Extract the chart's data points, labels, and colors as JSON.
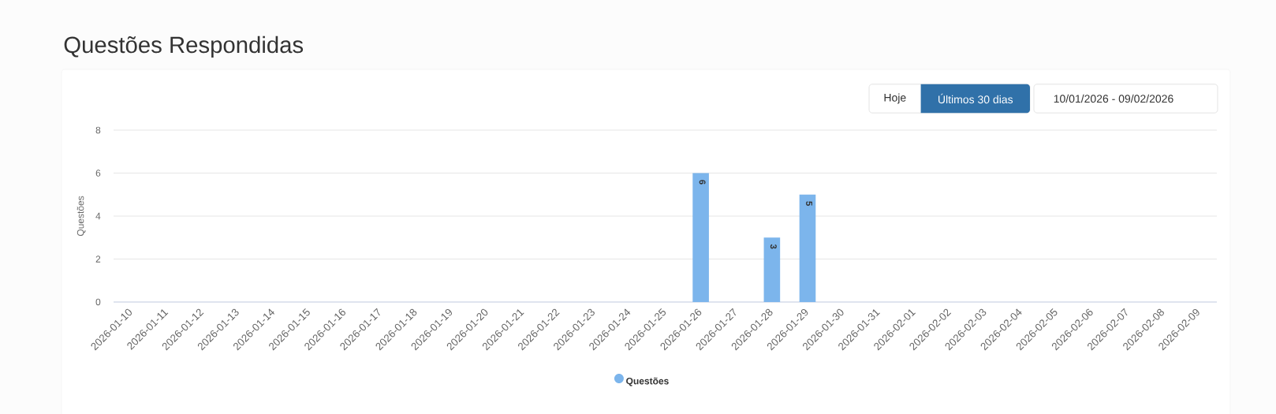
{
  "chart_data": {
    "type": "bar",
    "title": "Questões Respondidas",
    "ylabel": "Questões",
    "categories": [
      "2026-01-10",
      "2026-01-11",
      "2026-01-12",
      "2026-01-13",
      "2026-01-14",
      "2026-01-15",
      "2026-01-16",
      "2026-01-17",
      "2026-01-18",
      "2026-01-19",
      "2026-01-20",
      "2026-01-21",
      "2026-01-22",
      "2026-01-23",
      "2026-01-24",
      "2026-01-25",
      "2026-01-26",
      "2026-01-27",
      "2026-01-28",
      "2026-01-29",
      "2026-01-30",
      "2026-01-31",
      "2026-02-01",
      "2026-02-02",
      "2026-02-03",
      "2026-02-04",
      "2026-02-05",
      "2026-02-06",
      "2026-02-07",
      "2026-02-08",
      "2026-02-09"
    ],
    "series": [
      {
        "name": "Questões",
        "color": "#7cb5ec",
        "values": [
          0,
          0,
          0,
          0,
          0,
          0,
          0,
          0,
          0,
          0,
          0,
          0,
          0,
          0,
          0,
          0,
          6,
          0,
          3,
          5,
          0,
          0,
          0,
          0,
          0,
          0,
          0,
          0,
          0,
          0,
          0
        ],
        "value_labels": [
          null,
          null,
          null,
          null,
          null,
          null,
          null,
          null,
          null,
          null,
          null,
          null,
          null,
          null,
          null,
          null,
          "6",
          null,
          "3",
          "5",
          null,
          null,
          null,
          null,
          null,
          null,
          null,
          null,
          null,
          null,
          null
        ]
      }
    ],
    "ylim": [
      0,
      8
    ],
    "yticks": [
      0,
      2,
      4,
      6,
      8
    ],
    "grid": "y",
    "legend": "bottom",
    "annotations": [
      "Hoje",
      "Últimos 30 dias",
      "10/01/2026 - 09/02/2026"
    ]
  }
}
